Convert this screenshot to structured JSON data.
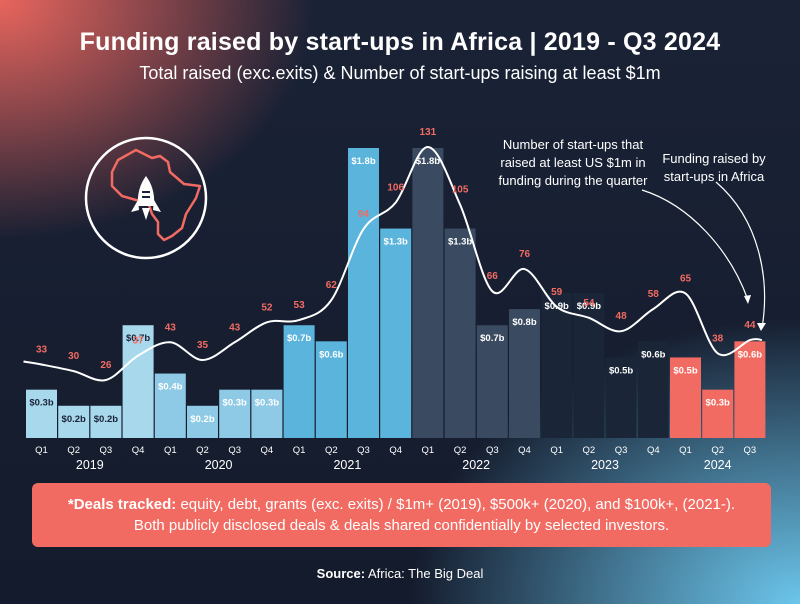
{
  "title": "Funding raised by start-ups in Africa | 2019 - Q3 2024",
  "subtitle": "Total raised (exc.exits) & Number of start-ups raising at least $1m",
  "annotations": {
    "count_line": "Number of start-ups that raised at least US $1m in funding during the quarter",
    "funding_bars": "Funding raised by start-ups in Africa"
  },
  "note": {
    "bold": "*Deals tracked:",
    "text": " equity, debt, grants (exc. exits) / $1m+ (2019), $500k+ (2020), and $100k+, (2021-).",
    "line2": "Both publicly disclosed deals & deals shared confidentially by selected investors."
  },
  "source": {
    "label": "Source:",
    "text": " Africa: The Big Deal"
  },
  "colors": {
    "y2019": "#a8d8ec",
    "y2020": "#8ecae6",
    "y2021": "#5ab4dc",
    "y2022": "#3a4a60",
    "y2023": "#1a2638",
    "y2024": "#f26b62",
    "count_label": "#f26b62"
  },
  "chart_data": {
    "type": "bar",
    "title": "Funding raised by start-ups in Africa | 2019 - Q3 2024",
    "categories": [
      "Q1",
      "Q2",
      "Q3",
      "Q4",
      "Q1",
      "Q2",
      "Q3",
      "Q4",
      "Q1",
      "Q2",
      "Q3",
      "Q4",
      "Q1",
      "Q2",
      "Q3",
      "Q4",
      "Q1",
      "Q2",
      "Q3",
      "Q4",
      "Q1",
      "Q2",
      "Q3"
    ],
    "years": [
      "2019",
      "2020",
      "2021",
      "2022",
      "2023",
      "2024"
    ],
    "series": [
      {
        "name": "Funding raised (US$ billion)",
        "values": [
          0.3,
          0.2,
          0.2,
          0.7,
          0.4,
          0.2,
          0.3,
          0.3,
          0.7,
          0.6,
          1.8,
          1.3,
          1.8,
          1.3,
          0.7,
          0.8,
          0.9,
          0.9,
          0.5,
          0.6,
          0.5,
          0.3,
          0.6
        ],
        "labels": [
          "$0.3b",
          "$0.2b",
          "$0.2b",
          "$0.7b",
          "$0.4b",
          "$0.2b",
          "$0.3b",
          "$0.3b",
          "$0.7b",
          "$0.6b",
          "$1.8b",
          "$1.3b",
          "$1.8b",
          "$1.3b",
          "$0.7b",
          "$0.8b",
          "$0.9b",
          "$0.9b",
          "$0.5b",
          "$0.6b",
          "$0.5b",
          "$0.3b",
          "$0.6b"
        ]
      },
      {
        "name": "Number of start-ups raising at least $1m",
        "type": "line",
        "values": [
          33,
          30,
          26,
          37,
          43,
          35,
          43,
          52,
          53,
          62,
          94,
          106,
          131,
          105,
          66,
          76,
          59,
          54,
          48,
          58,
          65,
          38,
          44
        ]
      }
    ],
    "ylim": [
      0,
      1.8
    ]
  }
}
